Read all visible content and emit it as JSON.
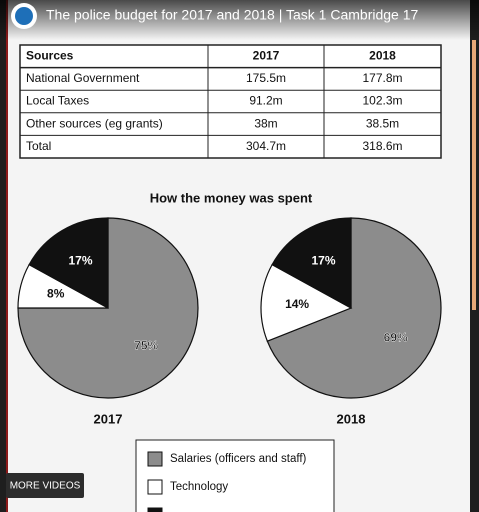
{
  "video": {
    "title": "The police budget for 2017 and 2018 | Task 1 Cambridge 17",
    "more_button": "MORE VIDEOS"
  },
  "table": {
    "header": [
      "Sources",
      "2017",
      "2018"
    ],
    "rows": [
      [
        "National Government",
        "175.5m",
        "177.8m"
      ],
      [
        "Local Taxes",
        "91.2m",
        "102.3m"
      ],
      [
        "Other sources (eg grants)",
        "38m",
        "38.5m"
      ],
      [
        "Total",
        "304.7m",
        "318.6m"
      ]
    ]
  },
  "figure_title": "How the money was spent",
  "chart_data": [
    {
      "type": "pie",
      "title": "2017",
      "categories": [
        "Salaries (officers and staff)",
        "Technology",
        null
      ],
      "values": [
        75,
        8,
        17
      ],
      "value_labels": [
        "75%",
        "8%",
        "17%"
      ],
      "colors": [
        "#8c8c8c",
        "#ffffff",
        "#111111"
      ]
    },
    {
      "type": "pie",
      "title": "2018",
      "categories": [
        "Salaries (officers and staff)",
        "Technology",
        null
      ],
      "values": [
        69,
        14,
        17
      ],
      "value_labels": [
        "69%",
        "14%",
        "17%"
      ],
      "colors": [
        "#8c8c8c",
        "#ffffff",
        "#111111"
      ]
    }
  ]
}
